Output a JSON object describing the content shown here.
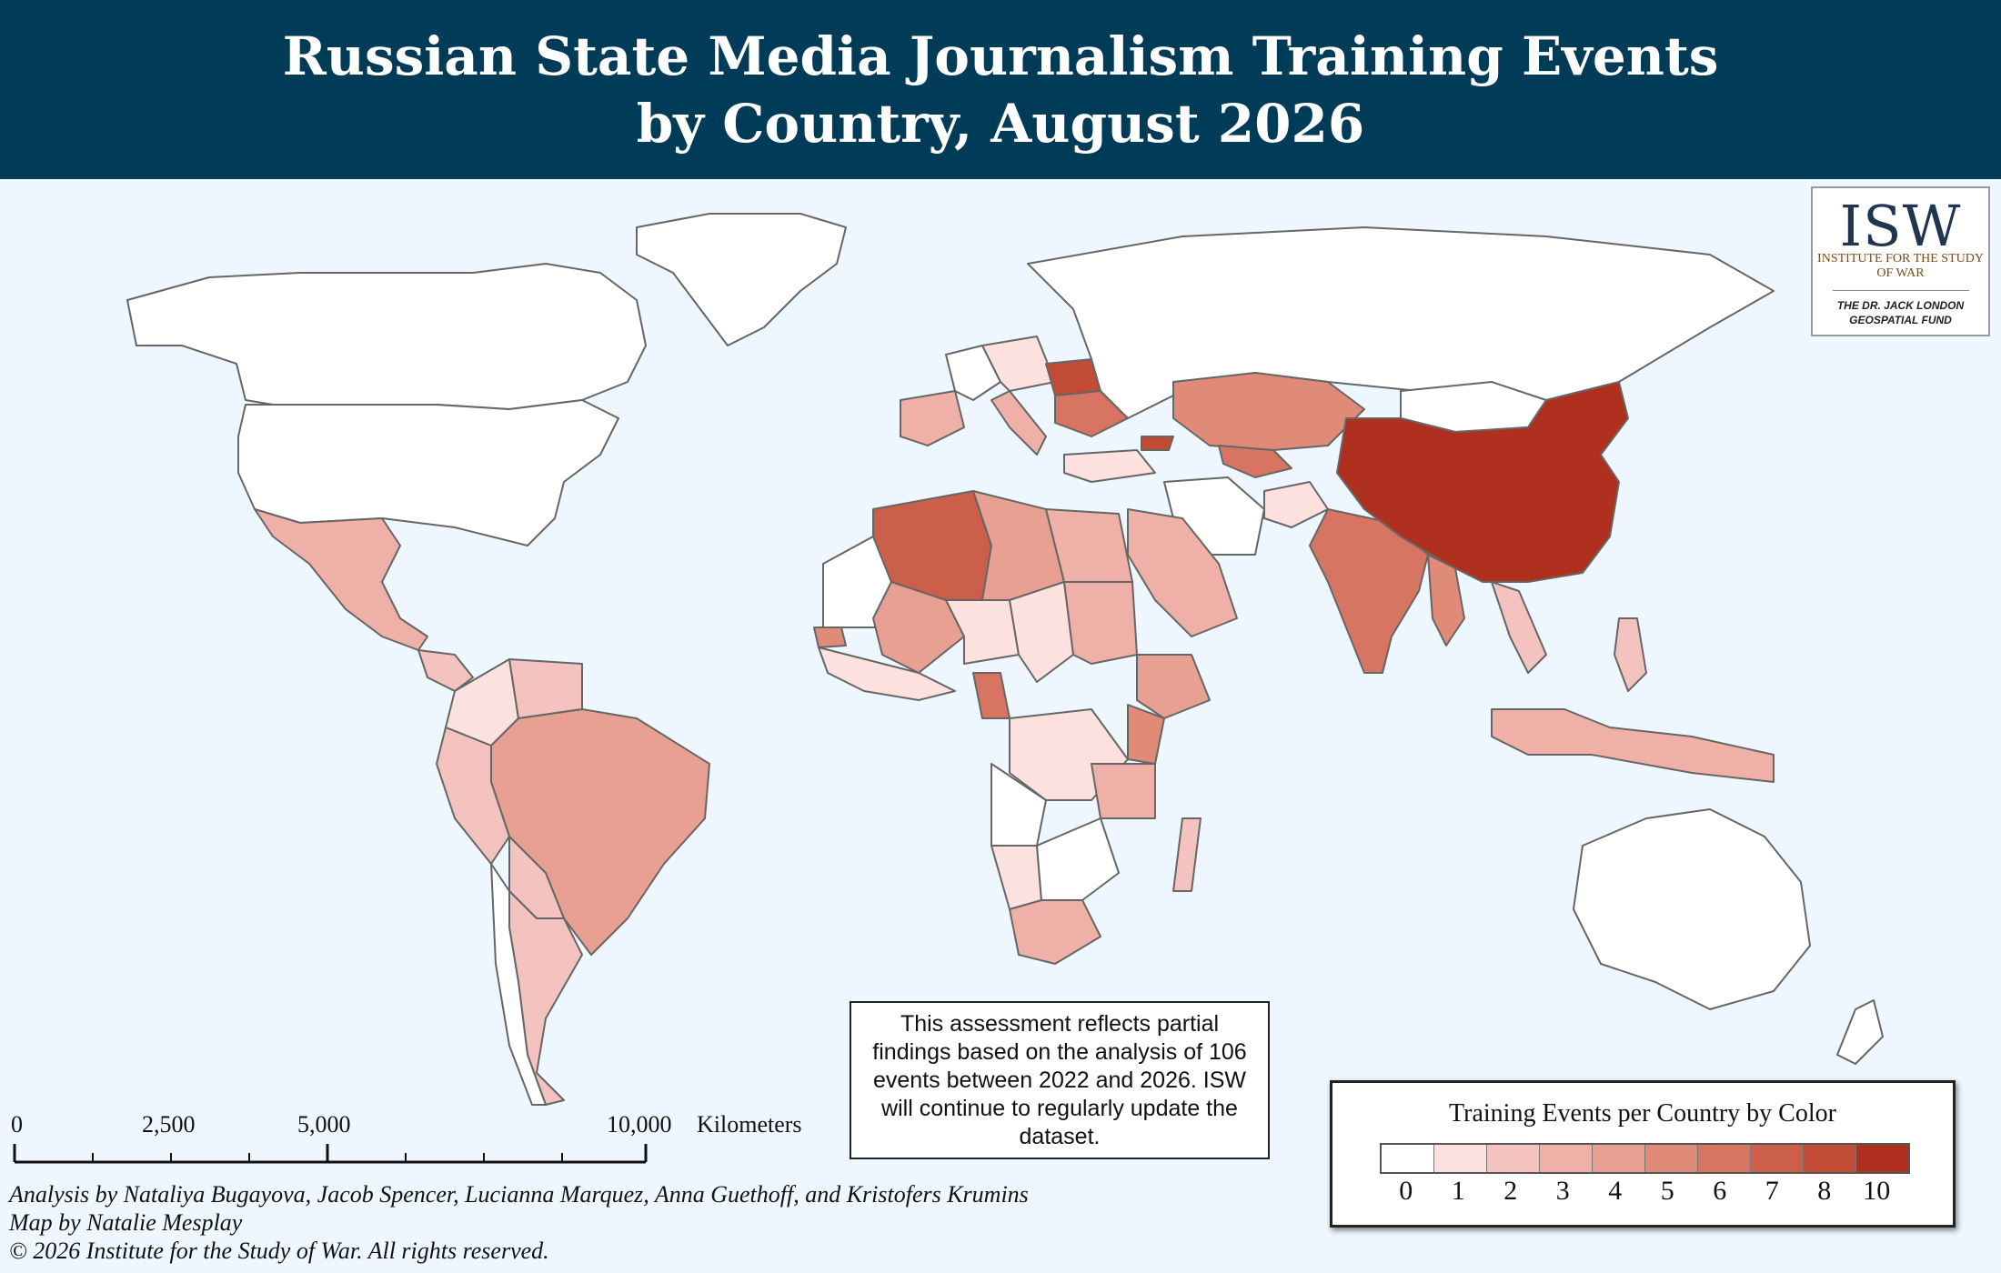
{
  "header": {
    "title_line1": "Russian State Media Journalism Training Events",
    "title_line2": "by Country, August 2026",
    "background": "#003b57"
  },
  "logo": {
    "mark": "ISW",
    "institute": "INSTITUTE FOR THE STUDY OF WAR",
    "fund_line1": "THE DR. JACK LONDON",
    "fund_line2": "GEOSPATIAL FUND"
  },
  "note": "This assessment reflects partial findings based on the analysis of 106 events between 2022 and 2026. ISW will continue to regularly update the dataset.",
  "legend": {
    "title": "Training Events per Country by Color",
    "bins": [
      {
        "label": "0",
        "color": "#ffffff"
      },
      {
        "label": "1",
        "color": "#fde1df"
      },
      {
        "label": "2",
        "color": "#f5c3bf"
      },
      {
        "label": "3",
        "color": "#efb0a8"
      },
      {
        "label": "4",
        "color": "#e8a092"
      },
      {
        "label": "5",
        "color": "#e08a78"
      },
      {
        "label": "6",
        "color": "#d87462"
      },
      {
        "label": "7",
        "color": "#cc5f4a"
      },
      {
        "label": "8",
        "color": "#c24b36"
      },
      {
        "label": "10",
        "color": "#b03020"
      }
    ]
  },
  "scale": {
    "ticks": [
      "0",
      "2,500",
      "5,000",
      "10,000"
    ],
    "unit": "Kilometers"
  },
  "credits": {
    "analysis": "Analysis by Nataliya Bugayova, Jacob Spencer, Lucianna Marquez, Anna Guethoff, and Kristofers Krumins",
    "map_by": "Map by Natalie Mesplay",
    "copyright": "© 2026 Institute for the Study of War. All rights reserved."
  },
  "map_colors": {
    "ocean": "#eef7ff",
    "border": "#666666"
  },
  "chart_data": {
    "type": "choropleth",
    "title": "Russian State Media Journalism Training Events by Country, August 2026",
    "value_label": "Training Events per Country",
    "countries": [
      {
        "name": "China",
        "value": 10
      },
      {
        "name": "Belarus",
        "value": 8
      },
      {
        "name": "Georgia",
        "value": 8
      },
      {
        "name": "Ukraine",
        "value": 6
      },
      {
        "name": "Algeria",
        "value": 6
      },
      {
        "name": "Cameroon",
        "value": 6
      },
      {
        "name": "India",
        "value": 6
      },
      {
        "name": "Uzbekistan",
        "value": 6
      },
      {
        "name": "Kazakhstan",
        "value": 5
      },
      {
        "name": "Myanmar",
        "value": 5
      },
      {
        "name": "Kenya",
        "value": 5
      },
      {
        "name": "Guinea-Bissau",
        "value": 5
      },
      {
        "name": "Brazil",
        "value": 4
      },
      {
        "name": "Libya",
        "value": 4
      },
      {
        "name": "Mali",
        "value": 4
      },
      {
        "name": "Ethiopia",
        "value": 4
      },
      {
        "name": "Spain",
        "value": 3
      },
      {
        "name": "Italy",
        "value": 3
      },
      {
        "name": "Mexico",
        "value": 3
      },
      {
        "name": "Egypt",
        "value": 3
      },
      {
        "name": "Sudan",
        "value": 3
      },
      {
        "name": "South Africa",
        "value": 3
      },
      {
        "name": "Tanzania",
        "value": 3
      },
      {
        "name": "Saudi Arabia",
        "value": 3
      },
      {
        "name": "Indonesia",
        "value": 3
      },
      {
        "name": "Argentina",
        "value": 2
      },
      {
        "name": "Peru",
        "value": 2
      },
      {
        "name": "Bolivia",
        "value": 2
      },
      {
        "name": "Venezuela",
        "value": 2
      },
      {
        "name": "Vietnam",
        "value": 2
      },
      {
        "name": "Philippines",
        "value": 2
      },
      {
        "name": "Madagascar",
        "value": 2
      },
      {
        "name": "Colombia",
        "value": 1
      },
      {
        "name": "Chad",
        "value": 1
      },
      {
        "name": "Niger",
        "value": 1
      },
      {
        "name": "DR Congo",
        "value": 1
      },
      {
        "name": "Turkey",
        "value": 1
      },
      {
        "name": "Afghanistan",
        "value": 1
      },
      {
        "name": "Namibia",
        "value": 1
      },
      {
        "name": "United States",
        "value": 0
      },
      {
        "name": "Canada",
        "value": 0
      },
      {
        "name": "Russia",
        "value": 0
      },
      {
        "name": "Australia",
        "value": 0
      },
      {
        "name": "Mongolia",
        "value": 0
      },
      {
        "name": "Iran",
        "value": 0
      },
      {
        "name": "Greenland",
        "value": 0
      }
    ]
  }
}
